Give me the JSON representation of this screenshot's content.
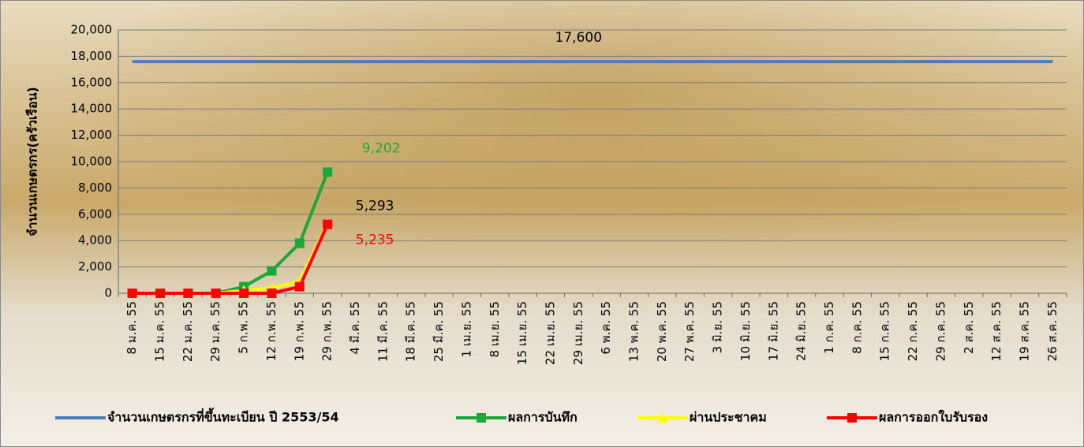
{
  "chart_data": {
    "type": "line",
    "y_label": "จำนวนเกษตรกร(ครัวเรือน)",
    "categories": [
      "8 ม.ค. 55",
      "15 ม.ค. 55",
      "22 ม.ค. 55",
      "29 ม.ค. 55",
      "5 ก.พ. 55",
      "12 ก.พ. 55",
      "19 ก.พ. 55",
      "29 ก.พ. 55",
      "4 มี.ค. 55",
      "11 มี.ค. 55",
      "18 มี.ค. 55",
      "25 มี.ค. 55",
      "1 เม.ย. 55",
      "8 เม.ย. 55",
      "15 เม.ย. 55",
      "22 เม.ย. 55",
      "29 เม.ย. 55",
      "6 พ.ค. 55",
      "13 พ.ค. 55",
      "20 พ.ค. 55",
      "27 พ.ค. 55",
      "3 มิ.ย. 55",
      "10 มิ.ย. 55",
      "17 มิ.ย. 55",
      "24 มิ.ย. 55",
      "1 ก.ค. 55",
      "8 ก.ค. 55",
      "15 ก.ค. 55",
      "22 ก.ค. 55",
      "29 ก.ค. 55",
      "2 ส.ค. 55",
      "12 ส.ค. 55",
      "19 ส.ค. 55",
      "26 ส.ค. 55"
    ],
    "series": [
      {
        "name": "จำนวนเกษตรกรที่ขึ้นทะเบียน ปี 2553/54",
        "color": "#4a7ebb",
        "marker": "none",
        "label_color": "#000000",
        "values": [
          17600,
          17600,
          17600,
          17600,
          17600,
          17600,
          17600,
          17600,
          17600,
          17600,
          17600,
          17600,
          17600,
          17600,
          17600,
          17600,
          17600,
          17600,
          17600,
          17600,
          17600,
          17600,
          17600,
          17600,
          17600,
          17600,
          17600,
          17600,
          17600,
          17600,
          17600,
          17600,
          17600,
          17600
        ],
        "value_labels": [
          null,
          null,
          null,
          null,
          null,
          null,
          null,
          null,
          null,
          null,
          null,
          null,
          null,
          null,
          null,
          null,
          "17,600",
          null,
          null,
          null,
          null,
          null,
          null,
          null,
          null,
          null,
          null,
          null,
          null,
          null,
          null,
          null,
          null,
          null
        ]
      },
      {
        "name": "ผลการบันทึก",
        "color": "#1aa83a",
        "marker": "square",
        "label_color": "#1aa83a",
        "values": [
          0,
          0,
          0,
          0,
          500,
          1700,
          3800,
          9202,
          null,
          null,
          null,
          null,
          null,
          null,
          null,
          null,
          null,
          null,
          null,
          null,
          null,
          null,
          null,
          null,
          null,
          null,
          null,
          null,
          null,
          null,
          null,
          null,
          null,
          null
        ],
        "value_labels": [
          null,
          null,
          null,
          null,
          null,
          null,
          null,
          "9,202",
          null,
          null,
          null,
          null,
          null,
          null,
          null,
          null,
          null,
          null,
          null,
          null,
          null,
          null,
          null,
          null,
          null,
          null,
          null,
          null,
          null,
          null,
          null,
          null,
          null,
          null
        ]
      },
      {
        "name": "ผ่านประชาคม",
        "color": "#ffff00",
        "marker": "triangle",
        "label_color": "#000000",
        "values": [
          0,
          0,
          0,
          0,
          200,
          400,
          900,
          5293,
          null,
          null,
          null,
          null,
          null,
          null,
          null,
          null,
          null,
          null,
          null,
          null,
          null,
          null,
          null,
          null,
          null,
          null,
          null,
          null,
          null,
          null,
          null,
          null,
          null,
          null
        ],
        "value_labels": [
          null,
          null,
          null,
          null,
          null,
          null,
          null,
          "5,293",
          null,
          null,
          null,
          null,
          null,
          null,
          null,
          null,
          null,
          null,
          null,
          null,
          null,
          null,
          null,
          null,
          null,
          null,
          null,
          null,
          null,
          null,
          null,
          null,
          null,
          null
        ]
      },
      {
        "name": "ผลการออกใบรับรอง",
        "color": "#ff0000",
        "marker": "square",
        "label_color": "#ff0000",
        "values": [
          0,
          0,
          0,
          0,
          0,
          0,
          500,
          5235,
          null,
          null,
          null,
          null,
          null,
          null,
          null,
          null,
          null,
          null,
          null,
          null,
          null,
          null,
          null,
          null,
          null,
          null,
          null,
          null,
          null,
          null,
          null,
          null,
          null,
          null
        ],
        "value_labels": [
          null,
          null,
          null,
          null,
          null,
          null,
          null,
          "5,235",
          null,
          null,
          null,
          null,
          null,
          null,
          null,
          null,
          null,
          null,
          null,
          null,
          null,
          null,
          null,
          null,
          null,
          null,
          null,
          null,
          null,
          null,
          null,
          null,
          null,
          null
        ]
      }
    ],
    "ylim": [
      0,
      20000
    ],
    "yticks": [
      0,
      {
        "value": 2000,
        "label": "2,000"
      },
      {
        "value": 4000,
        "label": "4,000"
      },
      {
        "value": 6000,
        "label": "6,000"
      },
      {
        "value": 8000,
        "label": "8,000"
      },
      {
        "value": 10000,
        "label": "10,000"
      },
      {
        "value": 12000,
        "label": "12,000"
      },
      {
        "value": 14000,
        "label": "14,000"
      },
      {
        "value": 16000,
        "label": "16,000"
      },
      {
        "value": 18000,
        "label": "18,000"
      },
      {
        "value": 20000,
        "label": "20,000"
      }
    ],
    "grid": true,
    "legend": "bottom"
  }
}
